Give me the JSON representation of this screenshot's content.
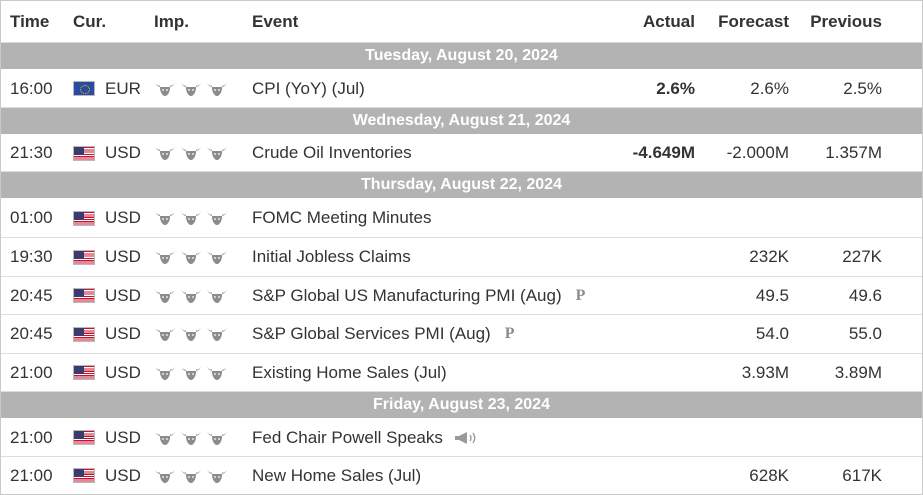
{
  "header": {
    "time": "Time",
    "currency": "Cur.",
    "importance": "Imp.",
    "event": "Event",
    "actual": "Actual",
    "forecast": "Forecast",
    "previous": "Previous"
  },
  "days": {
    "d0": "Tuesday, August 20, 2024",
    "d1": "Wednesday, August 21, 2024",
    "d2": "Thursday, August 22, 2024",
    "d3": "Friday, August 23, 2024"
  },
  "events": [
    {
      "time": "16:00",
      "currency": "EUR",
      "flag": "eu-flag",
      "importance": 3,
      "name": "CPI (YoY) (Jul)",
      "actual": "2.6%",
      "forecast": "2.6%",
      "previous": "2.5%"
    },
    {
      "time": "21:30",
      "currency": "USD",
      "flag": "us-flag",
      "importance": 3,
      "name": "Crude Oil Inventories",
      "actual": "-4.649M",
      "forecast": "-2.000M",
      "previous": "1.357M"
    },
    {
      "time": "01:00",
      "currency": "USD",
      "flag": "us-flag",
      "importance": 3,
      "name": "FOMC Meeting Minutes",
      "actual": "",
      "forecast": "",
      "previous": ""
    },
    {
      "time": "19:30",
      "currency": "USD",
      "flag": "us-flag",
      "importance": 3,
      "name": "Initial Jobless Claims",
      "actual": "",
      "forecast": "232K",
      "previous": "227K"
    },
    {
      "time": "20:45",
      "currency": "USD",
      "flag": "us-flag",
      "importance": 3,
      "name": "S&P Global US Manufacturing PMI (Aug)",
      "suffix": "P",
      "actual": "",
      "forecast": "49.5",
      "previous": "49.6"
    },
    {
      "time": "20:45",
      "currency": "USD",
      "flag": "us-flag",
      "importance": 3,
      "name": "S&P Global Services PMI (Aug)",
      "suffix": "P",
      "actual": "",
      "forecast": "54.0",
      "previous": "55.0"
    },
    {
      "time": "21:00",
      "currency": "USD",
      "flag": "us-flag",
      "importance": 3,
      "name": "Existing Home Sales (Jul)",
      "actual": "",
      "forecast": "3.93M",
      "previous": "3.89M"
    },
    {
      "time": "21:00",
      "currency": "USD",
      "flag": "us-flag",
      "importance": 3,
      "name": "Fed Chair Powell Speaks",
      "icon": "speaker-icon",
      "actual": "",
      "forecast": "",
      "previous": ""
    },
    {
      "time": "21:00",
      "currency": "USD",
      "flag": "us-flag",
      "importance": 3,
      "name": "New Home Sales (Jul)",
      "actual": "",
      "forecast": "628K",
      "previous": "617K"
    }
  ],
  "colors": {
    "day_band": "#b3b3b3",
    "actual_negative_surprise": "#2f9d2f",
    "border": "#dddddd",
    "bull_icon": "#8c8c8c"
  }
}
